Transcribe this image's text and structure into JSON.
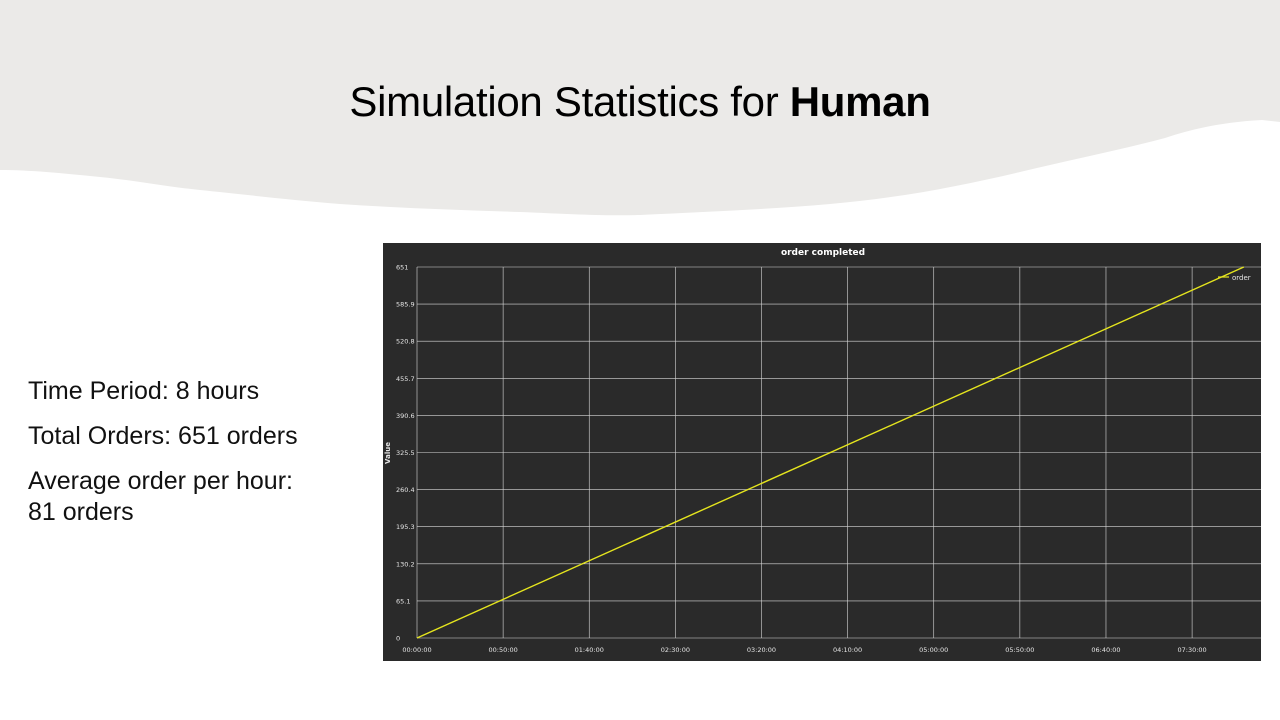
{
  "slide": {
    "title_prefix": "Simulation Statistics for ",
    "title_bold": "Human"
  },
  "stats": {
    "time_period": "Time Period: 8 hours",
    "total_orders": "Total Orders: 651 orders",
    "avg_line1": "Average order per hour:",
    "avg_line2": "81 orders"
  },
  "colors": {
    "header_band": "#ebeae8",
    "chart_background": "#2a2a2a",
    "series_line": "#e5e51e",
    "grid": "#d9d9d9"
  },
  "chart_data": {
    "type": "line",
    "title": "order completed",
    "ylabel": "Value",
    "xlabel": "",
    "grid": true,
    "legend_placement": "top-right",
    "x_tick_labels": [
      "00:00:00",
      "00:50:00",
      "01:40:00",
      "02:30:00",
      "03:20:00",
      "04:10:00",
      "05:00:00",
      "05:50:00",
      "06:40:00",
      "07:30:00"
    ],
    "y_tick_labels": [
      "0",
      "65.1",
      "130.2",
      "195.3",
      "260.4",
      "325.5",
      "390.6",
      "455.7",
      "520.8",
      "585.9",
      "651"
    ],
    "xlim_minutes": [
      0,
      480
    ],
    "ylim": [
      0,
      651
    ],
    "series": [
      {
        "name": "order",
        "x": [
          "00:00:00",
          "08:00:00"
        ],
        "y": [
          0,
          651
        ]
      }
    ]
  }
}
